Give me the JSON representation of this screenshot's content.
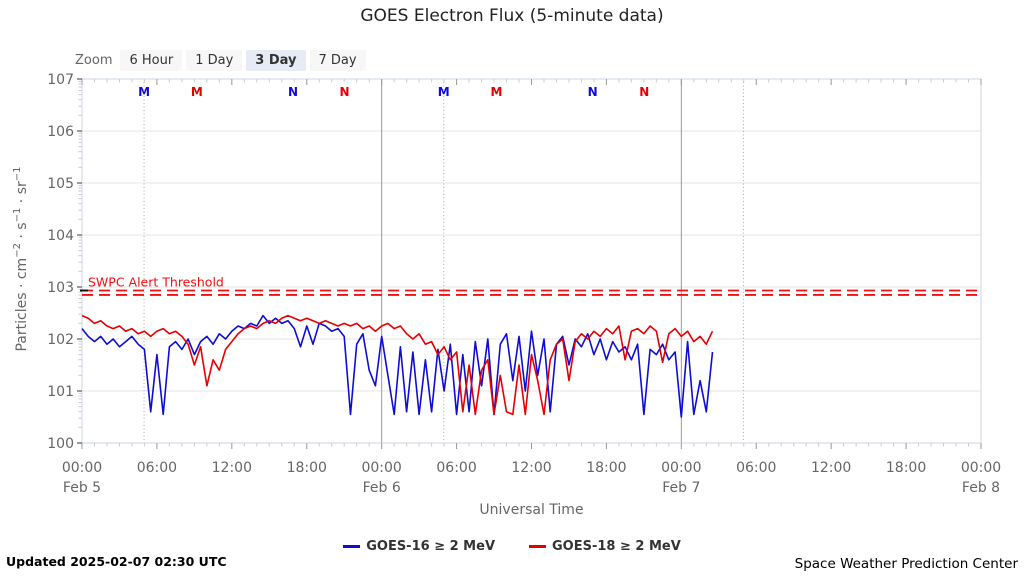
{
  "title": "GOES Electron Flux (5-minute data)",
  "range_selector": {
    "label": "Zoom",
    "buttons": [
      {
        "label": "6 Hour",
        "selected": false
      },
      {
        "label": "1 Day",
        "selected": false
      },
      {
        "label": "3 Day",
        "selected": true
      },
      {
        "label": "7 Day",
        "selected": false
      }
    ]
  },
  "footer": {
    "updated": "Updated 2025-02-07 02:30 UTC",
    "source": "Space Weather Prediction Center"
  },
  "colors": {
    "goes16_blue": "#0d0dd6",
    "goes18_red": "#e60000",
    "threshold_red": "#f01010",
    "gridline": "#e6e6e6",
    "day_line": "#999999",
    "dotted_line": "#aaaaaa",
    "axis_border": "#ccd6eb",
    "tick_minor": "#cccccc",
    "tick_major_x": "#999999",
    "tick_major_y": "#666666",
    "axis_label": "#666666",
    "selected_button_bg": "#e6ebf5"
  },
  "chart_data": {
    "type": "line",
    "title": "GOES Electron Flux (5-minute data)",
    "xlabel": "Universal Time",
    "ylabel_text": "Particles · cm−2 · s−1 · sr−1",
    "ylabel_parts": [
      {
        "t": "Particles · cm"
      },
      {
        "sup": "−2"
      },
      {
        "t": " · s"
      },
      {
        "sup": "−1"
      },
      {
        "t": " · sr"
      },
      {
        "sup": "−1"
      }
    ],
    "x_axis": {
      "range_hours": [
        0,
        72
      ],
      "major_tick_hours": 6,
      "minor_tick_hours": 1,
      "tick_labels": [
        {
          "hour": 0,
          "time": "00:00",
          "date": "Feb 5"
        },
        {
          "hour": 6,
          "time": "06:00"
        },
        {
          "hour": 12,
          "time": "12:00"
        },
        {
          "hour": 18,
          "time": "18:00"
        },
        {
          "hour": 24,
          "time": "00:00",
          "date": "Feb 6"
        },
        {
          "hour": 30,
          "time": "06:00"
        },
        {
          "hour": 36,
          "time": "12:00"
        },
        {
          "hour": 42,
          "time": "18:00"
        },
        {
          "hour": 48,
          "time": "00:00",
          "date": "Feb 7"
        },
        {
          "hour": 54,
          "time": "06:00"
        },
        {
          "hour": 60,
          "time": "12:00"
        },
        {
          "hour": 66,
          "time": "18:00"
        },
        {
          "hour": 72,
          "time": "00:00",
          "date": "Feb 8"
        }
      ]
    },
    "y_axis": {
      "log_range": [
        0,
        7
      ],
      "tick_labels": [
        {
          "log": 0,
          "label": "100"
        },
        {
          "log": 1,
          "label": "101"
        },
        {
          "log": 2,
          "label": "102"
        },
        {
          "log": 3,
          "label": "103"
        },
        {
          "log": 4,
          "label": "104"
        },
        {
          "log": 5,
          "label": "105"
        },
        {
          "log": 6,
          "label": "106"
        },
        {
          "log": 7,
          "label": "107"
        }
      ]
    },
    "day_boundary_lines_hours": [
      24,
      48
    ],
    "dotted_lines_hours": [
      4.97,
      28.97,
      52.97
    ],
    "threshold": {
      "label": "SWPC Alert Threshold",
      "log_value": 2.89
    },
    "event_markers": [
      {
        "hour": 4.97,
        "label": "M",
        "satellite": "GOES-16",
        "color": "#0d0dd6"
      },
      {
        "hour": 9.2,
        "label": "M",
        "satellite": "GOES-18",
        "color": "#e60000"
      },
      {
        "hour": 16.9,
        "label": "N",
        "satellite": "GOES-16",
        "color": "#0d0dd6"
      },
      {
        "hour": 21.03,
        "label": "N",
        "satellite": "GOES-18",
        "color": "#e60000"
      },
      {
        "hour": 28.97,
        "label": "M",
        "satellite": "GOES-16",
        "color": "#0d0dd6"
      },
      {
        "hour": 33.2,
        "label": "M",
        "satellite": "GOES-18",
        "color": "#e60000"
      },
      {
        "hour": 40.9,
        "label": "N",
        "satellite": "GOES-16",
        "color": "#0d0dd6"
      },
      {
        "hour": 45.03,
        "label": "N",
        "satellite": "GOES-18",
        "color": "#e60000"
      }
    ],
    "legend": [
      {
        "label": "GOES-16 ≥ 2 MeV",
        "color": "#0d0dd6"
      },
      {
        "label": "GOES-18 ≥ 2 MeV",
        "color": "#e60000"
      }
    ],
    "series": [
      {
        "name": "GOES-16 ≥ 2 MeV",
        "color": "#0d0dd6",
        "start_hour": 0,
        "step_hours": 0.5,
        "log_values": [
          2.2,
          2.05,
          1.95,
          2.05,
          1.9,
          2.0,
          1.85,
          1.95,
          2.05,
          1.9,
          1.8,
          0.6,
          1.7,
          0.55,
          1.85,
          1.95,
          1.8,
          2.0,
          1.7,
          1.95,
          2.05,
          1.9,
          2.1,
          2.0,
          2.15,
          2.25,
          2.2,
          2.3,
          2.25,
          2.45,
          2.3,
          2.4,
          2.3,
          2.35,
          2.2,
          1.85,
          2.25,
          1.9,
          2.3,
          2.25,
          2.15,
          2.2,
          2.05,
          0.55,
          1.9,
          2.1,
          1.4,
          1.1,
          2.05,
          1.3,
          0.55,
          1.85,
          0.6,
          1.75,
          0.55,
          1.6,
          0.6,
          1.8,
          1.0,
          1.9,
          0.55,
          1.7,
          0.6,
          1.95,
          1.1,
          2.0,
          0.55,
          1.9,
          2.1,
          1.2,
          2.05,
          1.0,
          2.15,
          1.3,
          2.0,
          0.6,
          1.9,
          2.05,
          1.5,
          2.0,
          1.85,
          2.1,
          1.7,
          2.0,
          1.6,
          1.95,
          1.75,
          1.85,
          1.6,
          1.9,
          0.55,
          1.8,
          1.7,
          1.9,
          1.6,
          1.75,
          0.5,
          1.95,
          0.55,
          1.2,
          0.6,
          1.75
        ]
      },
      {
        "name": "GOES-18 ≥ 2 MeV",
        "color": "#e60000",
        "start_hour": 0,
        "step_hours": 0.5,
        "log_values": [
          2.45,
          2.4,
          2.3,
          2.35,
          2.25,
          2.2,
          2.25,
          2.15,
          2.2,
          2.1,
          2.15,
          2.05,
          2.15,
          2.2,
          2.1,
          2.15,
          2.05,
          1.9,
          1.5,
          1.85,
          1.1,
          1.6,
          1.4,
          1.8,
          1.95,
          2.1,
          2.2,
          2.25,
          2.2,
          2.3,
          2.35,
          2.3,
          2.4,
          2.45,
          2.4,
          2.35,
          2.4,
          2.35,
          2.3,
          2.35,
          2.3,
          2.25,
          2.3,
          2.25,
          2.3,
          2.2,
          2.25,
          2.15,
          2.25,
          2.3,
          2.2,
          2.25,
          2.1,
          2.0,
          2.1,
          1.9,
          1.95,
          1.7,
          1.85,
          1.6,
          1.75,
          0.6,
          1.5,
          0.55,
          1.4,
          1.6,
          0.55,
          1.3,
          0.6,
          0.55,
          1.5,
          0.55,
          1.7,
          1.2,
          0.55,
          1.6,
          1.9,
          2.0,
          1.2,
          1.95,
          2.1,
          2.0,
          2.15,
          2.05,
          2.2,
          2.1,
          2.25,
          1.6,
          2.15,
          2.2,
          2.1,
          2.25,
          2.15,
          1.55,
          2.1,
          2.2,
          2.05,
          2.15,
          1.95,
          2.05,
          1.9,
          2.15
        ]
      }
    ]
  }
}
